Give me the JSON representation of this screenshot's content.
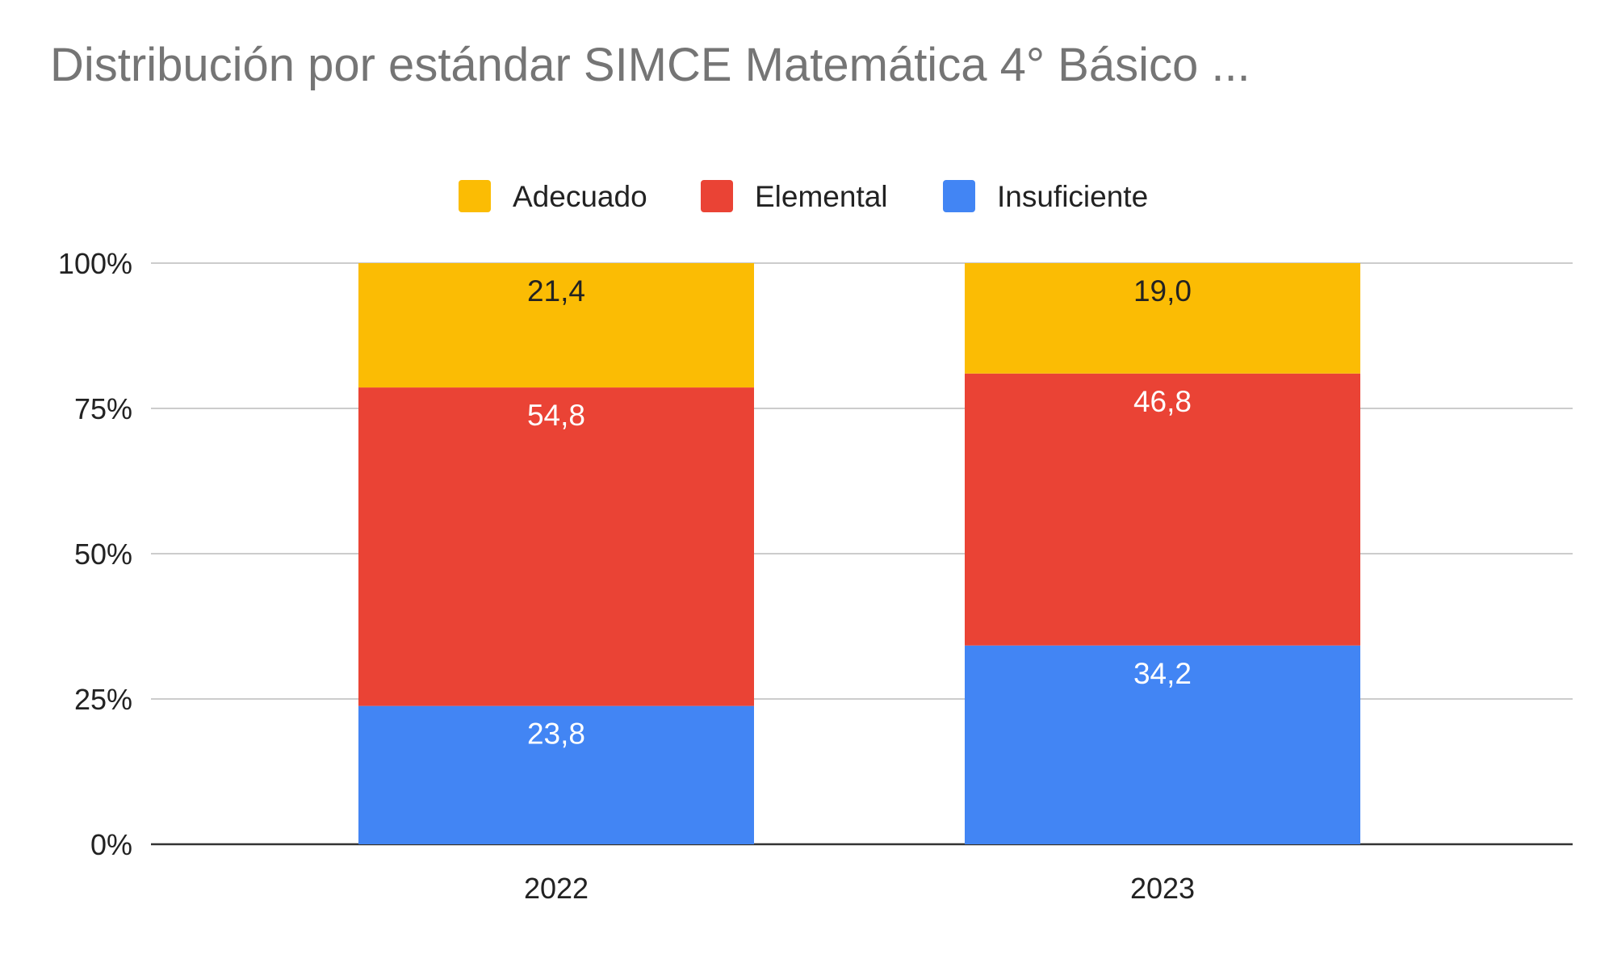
{
  "colors": {
    "background": "#ffffff",
    "title": "#757575",
    "text": "#222222",
    "grid": "#cccccc",
    "axis": "#333333"
  },
  "chart_data": {
    "type": "bar",
    "stacked": true,
    "percent_stacked": true,
    "title": "Distribución por estándar SIMCE Matemática 4° Básico ...",
    "xlabel": "",
    "ylabel": "",
    "categories": [
      "2022",
      "2023"
    ],
    "series": [
      {
        "name": "Insuficiente",
        "values": [
          23.8,
          34.2
        ],
        "color": "#4285f4",
        "label_color": "#ffffff"
      },
      {
        "name": "Elemental",
        "values": [
          54.8,
          46.8
        ],
        "color": "#ea4335",
        "label_color": "#ffffff"
      },
      {
        "name": "Adecuado",
        "values": [
          21.4,
          19.0
        ],
        "color": "#fbbc04",
        "label_color": "#222222"
      }
    ],
    "legend_order": [
      "Adecuado",
      "Elemental",
      "Insuficiente"
    ],
    "ylim": [
      0,
      100
    ],
    "yticks": [
      0,
      25,
      50,
      75,
      100
    ],
    "ytick_labels": [
      "0%",
      "25%",
      "50%",
      "75%",
      "100%"
    ],
    "grid": true,
    "legend_position": "top"
  }
}
